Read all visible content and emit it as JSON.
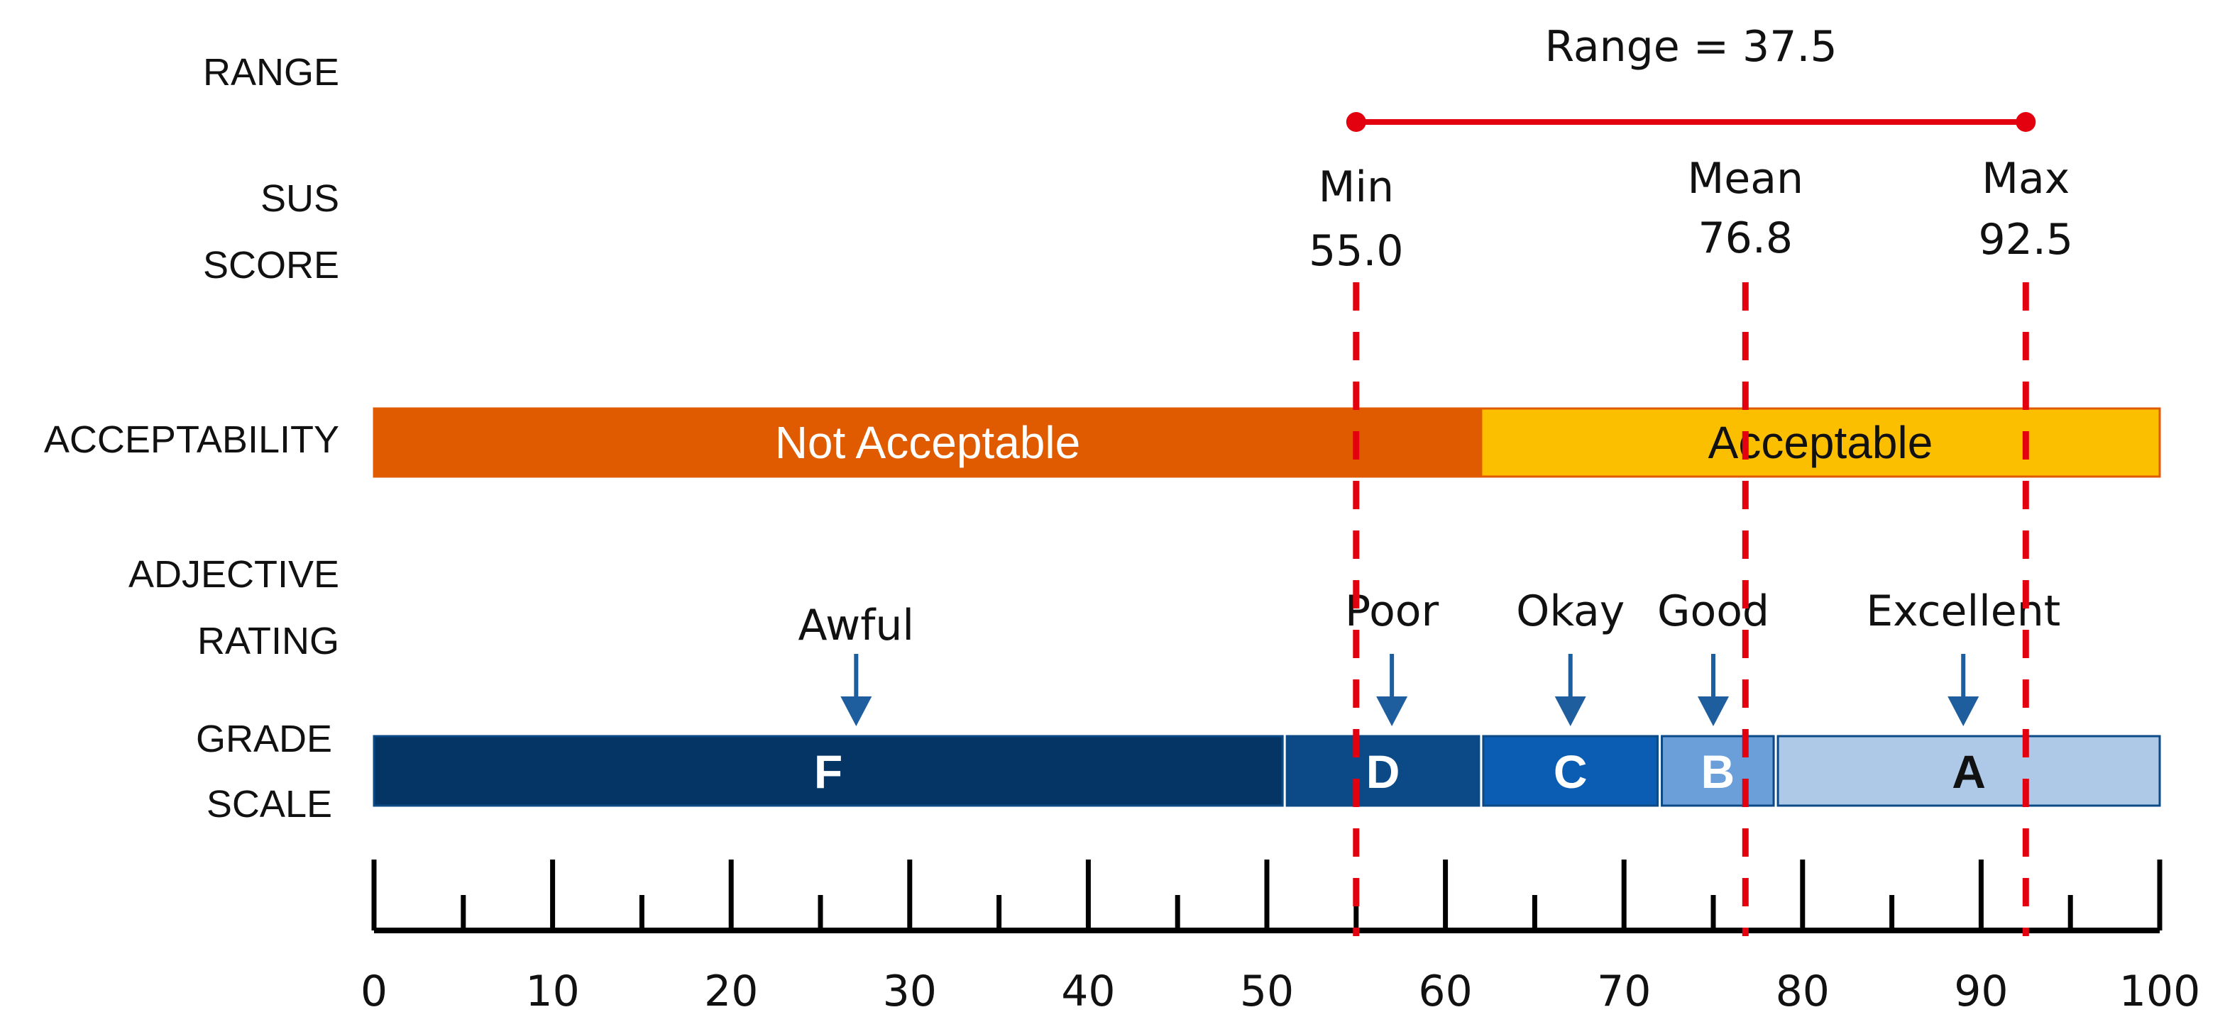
{
  "row_labels": {
    "range": "RANGE",
    "sus_1": "SUS",
    "sus_2": "SCORE",
    "acceptability": "ACCEPTABILITY",
    "adjective_1": "ADJECTIVE",
    "adjective_2": "RATING",
    "grade_1": "GRADE",
    "grade_2": "SCALE"
  },
  "range": {
    "label": "Range = 37.5",
    "from": 55.0,
    "to": 92.5,
    "color": "#e3000f"
  },
  "stats": [
    {
      "key": "min",
      "label": "Min",
      "value": "55.0",
      "x": 55.0
    },
    {
      "key": "mean",
      "label": "Mean",
      "value": "76.8",
      "x": 76.8
    },
    {
      "key": "max",
      "label": "Max",
      "value": "92.5",
      "x": 92.5
    }
  ],
  "acceptability": [
    {
      "key": "not-acceptable",
      "label": "Not Acceptable",
      "from": 0,
      "to": 62,
      "color": "#e05a00",
      "text_color": "#ffffff"
    },
    {
      "key": "acceptable",
      "label": "Acceptable",
      "from": 62,
      "to": 100,
      "color": "#fcbf00",
      "text_color": "#111111"
    }
  ],
  "adjectives": [
    {
      "key": "awful",
      "label": "Awful",
      "x": 27
    },
    {
      "key": "poor",
      "label": "Poor",
      "x": 57
    },
    {
      "key": "okay",
      "label": "Okay",
      "x": 67
    },
    {
      "key": "good",
      "label": "Good",
      "x": 75
    },
    {
      "key": "excellent",
      "label": "Excellent",
      "x": 89
    }
  ],
  "grades": [
    {
      "key": "f",
      "label": "F",
      "from": 0,
      "to": 51,
      "color": "#043565",
      "text_color": "#ffffff"
    },
    {
      "key": "d",
      "label": "D",
      "from": 51,
      "to": 62,
      "color": "#0b4a87",
      "text_color": "#ffffff"
    },
    {
      "key": "c",
      "label": "C",
      "from": 62,
      "to": 72,
      "color": "#0a5db2",
      "text_color": "#ffffff"
    },
    {
      "key": "b",
      "label": "B",
      "from": 72,
      "to": 78.5,
      "color": "#6b9fda",
      "text_color": "#ffffff"
    },
    {
      "key": "a",
      "label": "A",
      "from": 78.5,
      "to": 100,
      "color": "#aec8e8",
      "text_color": "#111111"
    }
  ],
  "axis": {
    "min": 0,
    "max": 100,
    "major_ticks": [
      0,
      10,
      20,
      30,
      40,
      50,
      60,
      70,
      80,
      90,
      100
    ],
    "minor_ticks": [
      5,
      15,
      25,
      35,
      45,
      55,
      65,
      75,
      85,
      95
    ]
  },
  "colors": {
    "arrow": "#1f5e9e",
    "marker_line": "#e3000f",
    "axis": "#000000"
  }
}
